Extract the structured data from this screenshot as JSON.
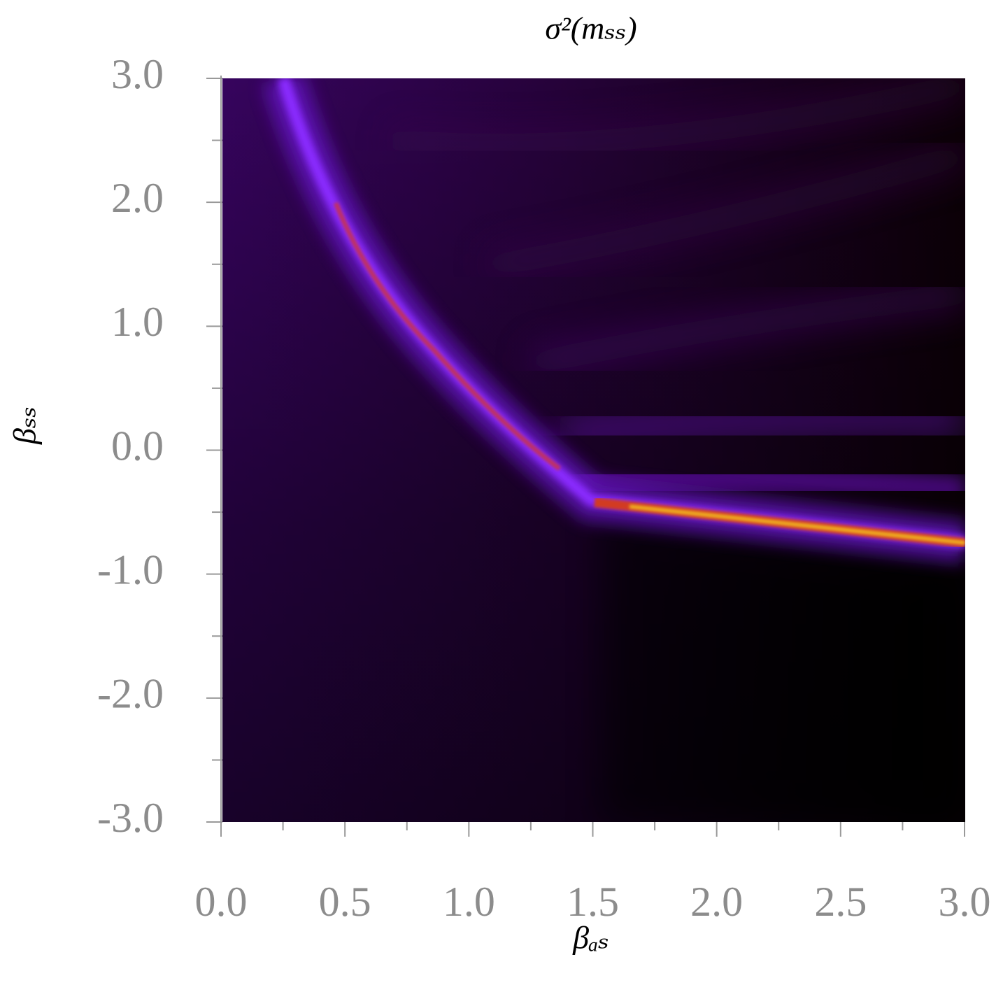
{
  "chart_data": {
    "type": "heatmap",
    "title": "σ²(mₛₛ)",
    "x_label": "βₐₛ",
    "y_label": "βₛₛ",
    "xlim": [
      0,
      3
    ],
    "ylim": [
      -3,
      3
    ],
    "xticks": [
      {
        "value": 0,
        "label": "0.0"
      },
      0.5,
      {
        "value": 1,
        "label": "1.0"
      },
      1.5,
      {
        "value": 2,
        "label": "2.0"
      },
      2.5,
      {
        "value": 3,
        "label": "3.0"
      }
    ],
    "yticks": [
      {
        "value": -3,
        "label": "-3.0"
      },
      {
        "value": -2,
        "label": "-2.0"
      },
      {
        "value": -1,
        "label": "-1.0"
      },
      {
        "value": 0,
        "label": "0.0"
      },
      {
        "value": 1,
        "label": "1.0"
      },
      {
        "value": 2,
        "label": "2.0"
      },
      {
        "value": 3,
        "label": "3.0"
      }
    ],
    "xminorticks": [
      0.25,
      0.75,
      1.25,
      1.75,
      2.25,
      2.75
    ],
    "yminorticks": [
      -2.5,
      -1.5,
      -0.5,
      0.5,
      1.5,
      2.5
    ]
  }
}
